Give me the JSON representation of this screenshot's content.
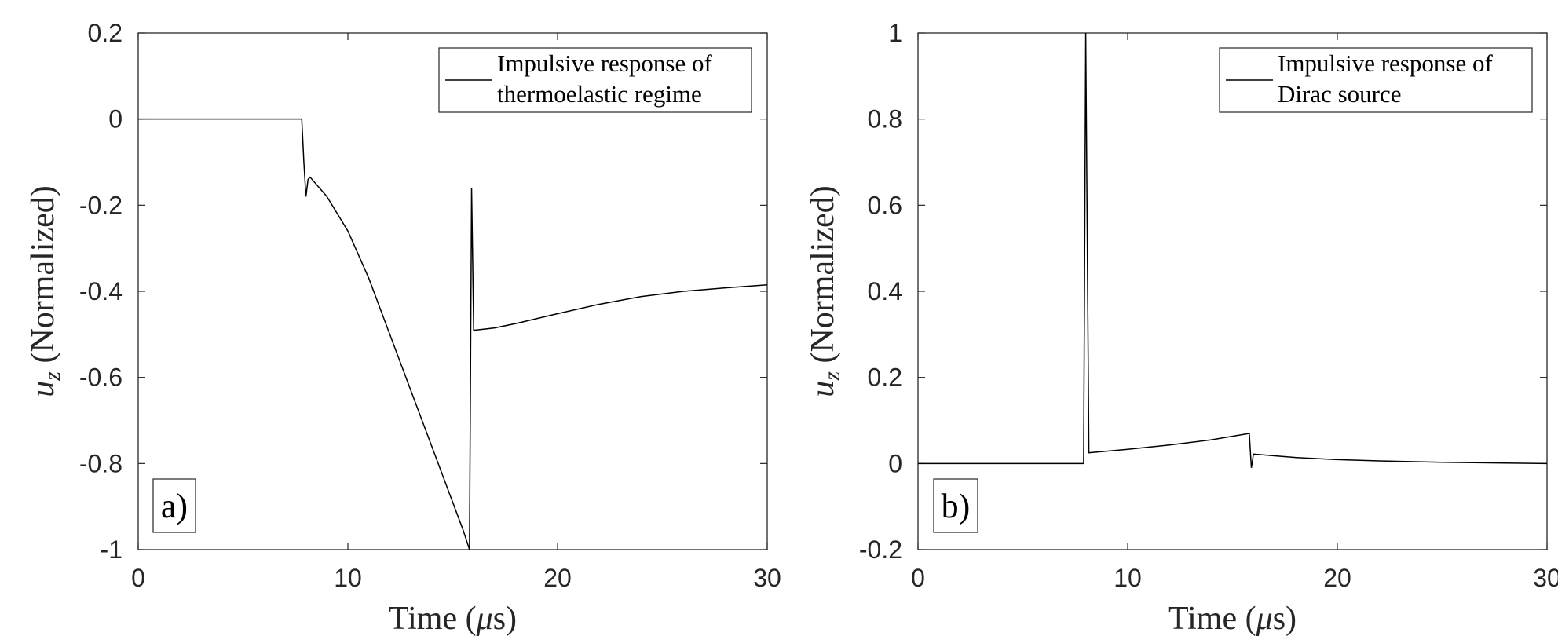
{
  "chart_data": [
    {
      "type": "line",
      "panel_label": "a)",
      "xlabel_pre": "Time (",
      "xlabel_sym": "μ",
      "xlabel_post": "s)",
      "ylabel_var": "u",
      "ylabel_sub": "z",
      "ylabel_rest": " (Normalized)",
      "xlim": [
        0,
        30
      ],
      "ylim": [
        -1,
        0.2
      ],
      "xticks": [
        0,
        10,
        20,
        30
      ],
      "xtick_labels": [
        "0",
        "10",
        "20",
        "30"
      ],
      "yticks": [
        -1,
        -0.8,
        -0.6,
        -0.4,
        -0.2,
        0,
        0.2
      ],
      "ytick_labels": [
        "-1",
        "-0.8",
        "-0.6",
        "-0.4",
        "-0.2",
        "0",
        "0.2"
      ],
      "grid": false,
      "legend_position": "top-right",
      "series": [
        {
          "legend_lines": [
            "Impulsive response of",
            "thermoelastic regime"
          ],
          "x": [
            0,
            7.8,
            7.9,
            8.0,
            8.1,
            8.2,
            9,
            10,
            11,
            12,
            13,
            14,
            15,
            15.5,
            15.8,
            15.9,
            16.0,
            16.1,
            17,
            18,
            20,
            22,
            24,
            26,
            28,
            30
          ],
          "y": [
            0,
            0,
            -0.1,
            -0.18,
            -0.14,
            -0.135,
            -0.18,
            -0.26,
            -0.37,
            -0.5,
            -0.63,
            -0.76,
            -0.89,
            -0.955,
            -1.0,
            -0.16,
            -0.49,
            -0.49,
            -0.485,
            -0.475,
            -0.452,
            -0.43,
            -0.412,
            -0.4,
            -0.392,
            -0.385
          ]
        }
      ]
    },
    {
      "type": "line",
      "panel_label": "b)",
      "xlabel_pre": "Time (",
      "xlabel_sym": "μ",
      "xlabel_post": "s)",
      "ylabel_var": "u",
      "ylabel_sub": "z",
      "ylabel_rest": " (Normalized)",
      "xlim": [
        0,
        30
      ],
      "ylim": [
        -0.2,
        1
      ],
      "xticks": [
        0,
        10,
        20,
        30
      ],
      "xtick_labels": [
        "0",
        "10",
        "20",
        "30"
      ],
      "yticks": [
        -0.2,
        0,
        0.2,
        0.4,
        0.6,
        0.8,
        1
      ],
      "ytick_labels": [
        "-0.2",
        "0",
        "0.2",
        "0.4",
        "0.6",
        "0.8",
        "1"
      ],
      "grid": false,
      "legend_position": "top-right",
      "series": [
        {
          "legend_lines": [
            "Impulsive response of",
            "Dirac source"
          ],
          "x": [
            0,
            7.9,
            8.0,
            8.15,
            10,
            12,
            14,
            15.8,
            15.9,
            16.0,
            17,
            18,
            20,
            22,
            25,
            28,
            30
          ],
          "y": [
            0,
            0,
            1.0,
            0.025,
            0.033,
            0.043,
            0.055,
            0.07,
            -0.01,
            0.022,
            0.018,
            0.014,
            0.009,
            0.006,
            0.003,
            0.001,
            0
          ]
        }
      ]
    }
  ]
}
